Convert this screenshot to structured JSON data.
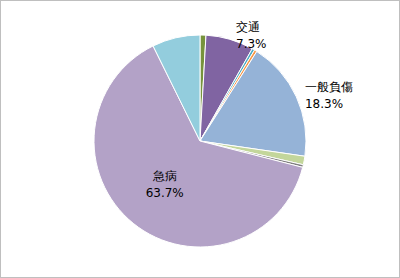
{
  "chart_data": {
    "type": "pie",
    "categories": [
      null,
      "交通",
      null,
      null,
      "一般負傷",
      null,
      null,
      "急病",
      null
    ],
    "values": [
      0.9,
      7.3,
      0.4,
      0.4,
      18.3,
      1.3,
      0.4,
      63.7,
      7.3
    ],
    "value_labels": [
      null,
      "7.3%",
      null,
      null,
      "18.3%",
      null,
      null,
      "63.7%",
      null
    ],
    "colors": [
      "#77933c",
      "#8064a2",
      "#4bacc6",
      "#f79646",
      "#95b3d7",
      "#c3d69b",
      "#7f7f7f",
      "#b3a2c7",
      "#93cddd"
    ],
    "data_labels": true
  }
}
